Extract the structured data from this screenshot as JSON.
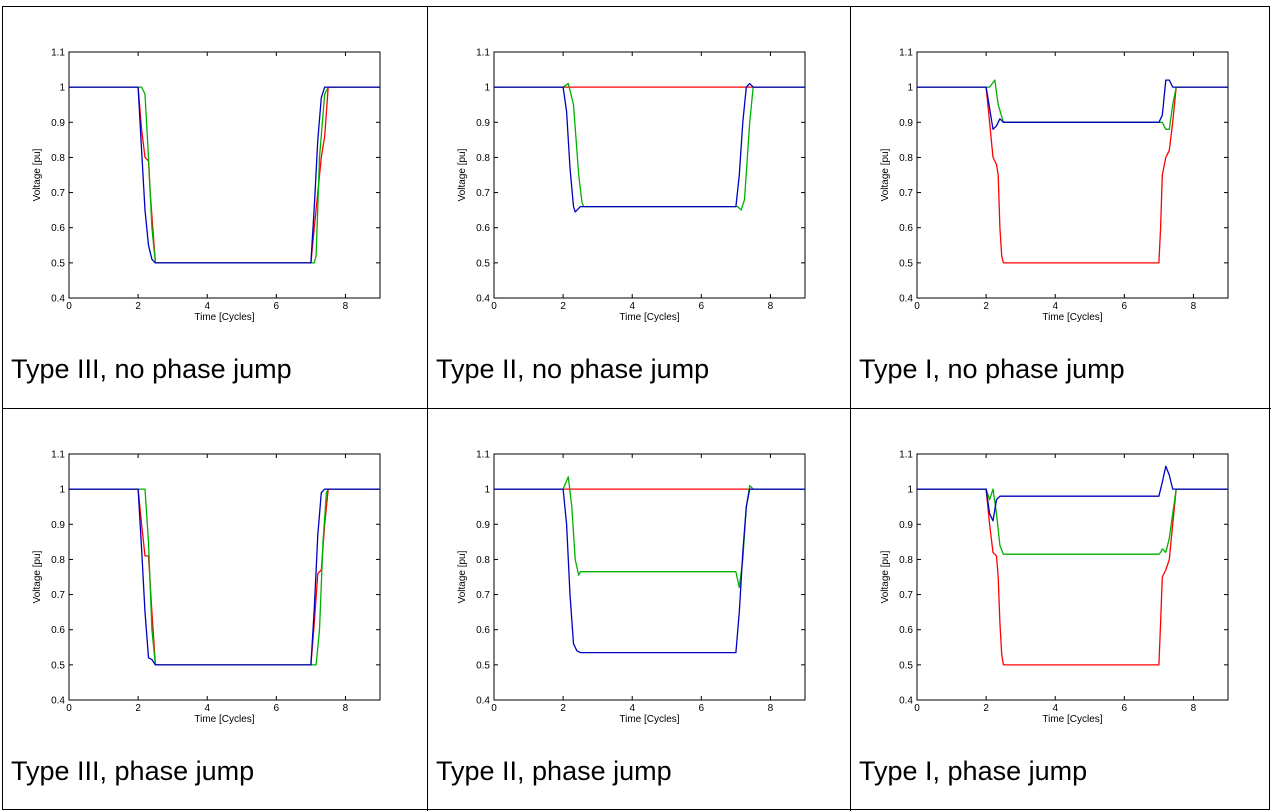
{
  "chart_data": [
    {
      "type": "line",
      "caption": "Type III, no phase jump",
      "xlabel": "Time [Cycles]",
      "ylabel": "Voltage [pu]",
      "xlim": [
        0,
        9
      ],
      "ylim": [
        0.4,
        1.1
      ],
      "xticks": [
        "0",
        "2",
        "4",
        "6",
        "8"
      ],
      "yticks": [
        "0.4",
        "0.5",
        "0.6",
        "0.7",
        "0.8",
        "0.9",
        "1",
        "1.1"
      ],
      "series": [
        {
          "color": "#ff0000",
          "x": [
            0,
            2,
            2.1,
            2.2,
            2.3,
            2.35,
            2.5,
            7,
            7.1,
            7.2,
            7.3,
            7.4,
            7.5,
            9
          ],
          "y": [
            1,
            1,
            0.88,
            0.8,
            0.79,
            0.7,
            0.5,
            0.5,
            0.6,
            0.7,
            0.8,
            0.86,
            1,
            1
          ]
        },
        {
          "color": "#00b000",
          "x": [
            0,
            2.1,
            2.2,
            2.3,
            2.4,
            2.5,
            7,
            7.1,
            7.15,
            7.25,
            7.4,
            7.5,
            9
          ],
          "y": [
            1,
            1,
            0.98,
            0.8,
            0.6,
            0.5,
            0.5,
            0.5,
            0.52,
            0.8,
            0.98,
            1,
            1
          ]
        },
        {
          "color": "#0000c0",
          "x": [
            0,
            2,
            2.1,
            2.2,
            2.3,
            2.4,
            2.5,
            7,
            7.1,
            7.2,
            7.3,
            7.4,
            9
          ],
          "y": [
            1,
            1,
            0.82,
            0.65,
            0.55,
            0.51,
            0.5,
            0.5,
            0.66,
            0.85,
            0.97,
            1,
            1
          ]
        }
      ]
    },
    {
      "type": "line",
      "caption": "Type II, no phase jump",
      "xlabel": "Time [Cycles]",
      "ylabel": "Voltage [pu]",
      "xlim": [
        0,
        9
      ],
      "ylim": [
        0.4,
        1.1
      ],
      "xticks": [
        "0",
        "2",
        "4",
        "6",
        "8"
      ],
      "yticks": [
        "0.4",
        "0.5",
        "0.6",
        "0.7",
        "0.8",
        "0.9",
        "1",
        "1.1"
      ],
      "series": [
        {
          "color": "#ff0000",
          "x": [
            0,
            9
          ],
          "y": [
            1,
            1
          ]
        },
        {
          "color": "#00b000",
          "x": [
            0,
            2,
            2.15,
            2.3,
            2.45,
            2.55,
            2.6,
            7,
            7.05,
            7.15,
            7.25,
            7.4,
            7.5,
            9
          ],
          "y": [
            1,
            1,
            1.01,
            0.95,
            0.75,
            0.67,
            0.66,
            0.66,
            0.66,
            0.65,
            0.68,
            0.9,
            1,
            1
          ]
        },
        {
          "color": "#0000c0",
          "x": [
            0,
            2,
            2.1,
            2.2,
            2.3,
            2.35,
            2.5,
            7,
            7.1,
            7.2,
            7.3,
            7.4,
            7.5,
            9
          ],
          "y": [
            1,
            1,
            0.93,
            0.77,
            0.66,
            0.645,
            0.66,
            0.66,
            0.75,
            0.9,
            1.0,
            1.01,
            1.0,
            1
          ]
        }
      ]
    },
    {
      "type": "line",
      "caption": "Type I, no phase jump",
      "xlabel": "Time [Cycles]",
      "ylabel": "Voltage [pu]",
      "xlim": [
        0,
        9
      ],
      "ylim": [
        0.4,
        1.1
      ],
      "xticks": [
        "0",
        "2",
        "4",
        "6",
        "8"
      ],
      "yticks": [
        "0.4",
        "0.5",
        "0.6",
        "0.7",
        "0.8",
        "0.9",
        "1",
        "1.1"
      ],
      "series": [
        {
          "color": "#ff0000",
          "x": [
            0,
            2,
            2.1,
            2.2,
            2.3,
            2.35,
            2.4,
            2.45,
            2.5,
            7,
            7.05,
            7.1,
            7.2,
            7.3,
            7.4,
            7.5,
            9
          ],
          "y": [
            1,
            1,
            0.9,
            0.8,
            0.78,
            0.75,
            0.6,
            0.52,
            0.5,
            0.5,
            0.6,
            0.75,
            0.8,
            0.82,
            0.9,
            1,
            1
          ]
        },
        {
          "color": "#00b000",
          "x": [
            0,
            2,
            2.1,
            2.25,
            2.35,
            2.5,
            7,
            7.1,
            7.2,
            7.3,
            7.4,
            7.5,
            9
          ],
          "y": [
            1,
            1,
            1.0,
            1.02,
            0.95,
            0.9,
            0.9,
            0.9,
            0.88,
            0.88,
            0.95,
            1,
            1
          ]
        },
        {
          "color": "#0000c0",
          "x": [
            0,
            2,
            2.1,
            2.2,
            2.3,
            2.4,
            2.5,
            7,
            7.1,
            7.2,
            7.3,
            7.4,
            7.5,
            9
          ],
          "y": [
            1,
            1,
            0.94,
            0.88,
            0.89,
            0.91,
            0.9,
            0.9,
            0.92,
            1.02,
            1.02,
            1.0,
            1.0,
            1
          ]
        }
      ]
    },
    {
      "type": "line",
      "caption": "Type III, phase jump",
      "xlabel": "Time [Cycles]",
      "ylabel": "Voltage [pu]",
      "xlim": [
        0,
        9
      ],
      "ylim": [
        0.4,
        1.1
      ],
      "xticks": [
        "0",
        "2",
        "4",
        "6",
        "8"
      ],
      "yticks": [
        "0.4",
        "0.5",
        "0.6",
        "0.7",
        "0.8",
        "0.9",
        "1",
        "1.1"
      ],
      "series": [
        {
          "color": "#ff0000",
          "x": [
            0,
            2,
            2.1,
            2.2,
            2.3,
            2.4,
            2.5,
            7,
            7.1,
            7.2,
            7.3,
            7.4,
            7.5,
            9
          ],
          "y": [
            1,
            1,
            0.9,
            0.81,
            0.81,
            0.65,
            0.5,
            0.5,
            0.62,
            0.76,
            0.77,
            0.9,
            1,
            1
          ]
        },
        {
          "color": "#00b000",
          "x": [
            0,
            2.2,
            2.3,
            2.4,
            2.5,
            7,
            7.15,
            7.25,
            7.35,
            7.45,
            7.5,
            9
          ],
          "y": [
            1,
            1,
            0.85,
            0.6,
            0.5,
            0.5,
            0.5,
            0.6,
            0.85,
            0.99,
            1,
            1
          ]
        },
        {
          "color": "#0000c0",
          "x": [
            0,
            2,
            2.1,
            2.2,
            2.3,
            2.4,
            2.5,
            7,
            7.1,
            7.2,
            7.3,
            7.4,
            9
          ],
          "y": [
            1,
            1,
            0.83,
            0.65,
            0.52,
            0.515,
            0.5,
            0.5,
            0.66,
            0.87,
            0.99,
            1,
            1
          ]
        }
      ]
    },
    {
      "type": "line",
      "caption": "Type II, phase jump",
      "xlabel": "Time [Cycles]",
      "ylabel": "Voltage [pu]",
      "xlim": [
        0,
        9
      ],
      "ylim": [
        0.4,
        1.1
      ],
      "xticks": [
        "0",
        "2",
        "4",
        "6",
        "8"
      ],
      "yticks": [
        "0.4",
        "0.5",
        "0.6",
        "0.7",
        "0.8",
        "0.9",
        "1",
        "1.1"
      ],
      "series": [
        {
          "color": "#ff0000",
          "x": [
            0,
            9
          ],
          "y": [
            1,
            1
          ]
        },
        {
          "color": "#00b000",
          "x": [
            0,
            2,
            2.15,
            2.25,
            2.35,
            2.45,
            2.5,
            7,
            7.1,
            7.2,
            7.3,
            7.4,
            7.5,
            9
          ],
          "y": [
            1,
            1,
            1.035,
            0.95,
            0.8,
            0.755,
            0.765,
            0.765,
            0.72,
            0.8,
            0.95,
            1.01,
            1,
            1
          ]
        },
        {
          "color": "#0000c0",
          "x": [
            0,
            2,
            2.1,
            2.2,
            2.3,
            2.4,
            2.5,
            7,
            7.1,
            7.2,
            7.3,
            7.4,
            7.5,
            9
          ],
          "y": [
            1,
            1,
            0.9,
            0.7,
            0.56,
            0.54,
            0.535,
            0.535,
            0.65,
            0.82,
            0.95,
            1.0,
            1,
            1
          ]
        }
      ]
    },
    {
      "type": "line",
      "caption": "Type I, phase jump",
      "xlabel": "Time [Cycles]",
      "ylabel": "Voltage [pu]",
      "xlim": [
        0,
        9
      ],
      "ylim": [
        0.4,
        1.1
      ],
      "xticks": [
        "0",
        "2",
        "4",
        "6",
        "8"
      ],
      "yticks": [
        "0.4",
        "0.5",
        "0.6",
        "0.7",
        "0.8",
        "0.9",
        "1",
        "1.1"
      ],
      "series": [
        {
          "color": "#ff0000",
          "x": [
            0,
            2,
            2.1,
            2.2,
            2.3,
            2.35,
            2.4,
            2.45,
            2.5,
            7,
            7.05,
            7.1,
            7.2,
            7.3,
            7.4,
            7.5,
            9
          ],
          "y": [
            1,
            1,
            0.9,
            0.82,
            0.81,
            0.75,
            0.62,
            0.53,
            0.5,
            0.5,
            0.62,
            0.75,
            0.77,
            0.8,
            0.9,
            1,
            1
          ]
        },
        {
          "color": "#00b000",
          "x": [
            0,
            2,
            2.1,
            2.2,
            2.3,
            2.4,
            2.5,
            7,
            7.05,
            7.1,
            7.2,
            7.3,
            7.4,
            7.5,
            9
          ],
          "y": [
            1,
            1,
            0.97,
            1.0,
            0.93,
            0.84,
            0.815,
            0.815,
            0.82,
            0.83,
            0.82,
            0.86,
            0.93,
            1,
            1
          ]
        },
        {
          "color": "#0000c0",
          "x": [
            0,
            2,
            2.1,
            2.2,
            2.3,
            2.4,
            2.5,
            7,
            7.1,
            7.2,
            7.3,
            7.4,
            7.5,
            9
          ],
          "y": [
            1,
            1,
            0.93,
            0.91,
            0.97,
            0.98,
            0.98,
            0.98,
            1.02,
            1.065,
            1.04,
            1.0,
            1.0,
            1
          ]
        }
      ]
    }
  ]
}
